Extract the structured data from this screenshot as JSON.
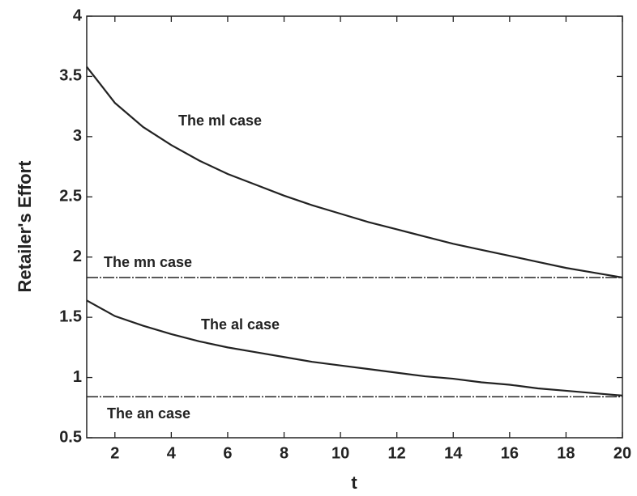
{
  "chart_data": {
    "type": "line",
    "x_label": "t",
    "y_label": "Retailer's Effort",
    "x": [
      1,
      2,
      3,
      4,
      5,
      6,
      7,
      8,
      9,
      10,
      11,
      12,
      13,
      14,
      15,
      16,
      17,
      18,
      19,
      20
    ],
    "series": [
      {
        "name": "The ml case",
        "color": "#222222",
        "style": "solid",
        "values": [
          3.58,
          3.28,
          3.08,
          2.93,
          2.8,
          2.69,
          2.6,
          2.51,
          2.43,
          2.36,
          2.29,
          2.23,
          2.17,
          2.11,
          2.06,
          2.01,
          1.96,
          1.91,
          1.87,
          1.83
        ]
      },
      {
        "name": "The mn case",
        "color": "#222222",
        "style": "dashed",
        "values": [
          1.83,
          1.83,
          1.83,
          1.83,
          1.83,
          1.83,
          1.83,
          1.83,
          1.83,
          1.83,
          1.83,
          1.83,
          1.83,
          1.83,
          1.83,
          1.83,
          1.83,
          1.83,
          1.83,
          1.83
        ]
      },
      {
        "name": "The al case",
        "color": "#222222",
        "style": "solid",
        "values": [
          1.64,
          1.51,
          1.43,
          1.36,
          1.3,
          1.25,
          1.21,
          1.17,
          1.13,
          1.1,
          1.07,
          1.04,
          1.01,
          0.99,
          0.96,
          0.94,
          0.91,
          0.89,
          0.87,
          0.85
        ]
      },
      {
        "name": "The an case",
        "color": "#222222",
        "style": "dashed",
        "values": [
          0.84,
          0.84,
          0.84,
          0.84,
          0.84,
          0.84,
          0.84,
          0.84,
          0.84,
          0.84,
          0.84,
          0.84,
          0.84,
          0.84,
          0.84,
          0.84,
          0.84,
          0.84,
          0.84,
          0.84
        ]
      }
    ],
    "xlim": [
      1,
      20
    ],
    "xticks": [
      2,
      4,
      6,
      8,
      10,
      12,
      14,
      16,
      18,
      20
    ],
    "ylim": [
      0.5,
      4
    ],
    "yticks": [
      0.5,
      1,
      1.5,
      2,
      2.5,
      3,
      3.5,
      4
    ],
    "grid": false
  }
}
